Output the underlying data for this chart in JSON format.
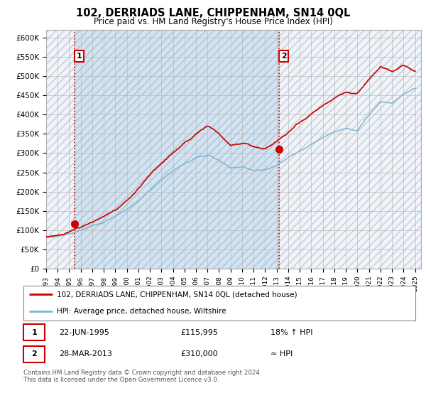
{
  "title": "102, DERRIADS LANE, CHIPPENHAM, SN14 0QL",
  "subtitle": "Price paid vs. HM Land Registry's House Price Index (HPI)",
  "ylabel_ticks": [
    "£0",
    "£50K",
    "£100K",
    "£150K",
    "£200K",
    "£250K",
    "£300K",
    "£350K",
    "£400K",
    "£450K",
    "£500K",
    "£550K",
    "£600K"
  ],
  "ytick_vals": [
    0,
    50000,
    100000,
    150000,
    200000,
    250000,
    300000,
    350000,
    400000,
    450000,
    500000,
    550000,
    600000
  ],
  "ylim": [
    0,
    620000
  ],
  "xlim_start": 1993.0,
  "xlim_end": 2025.5,
  "purchase1_year": 1995.47,
  "purchase1_price": 115995,
  "purchase2_year": 2013.23,
  "purchase2_price": 310000,
  "legend_line1": "102, DERRIADS LANE, CHIPPENHAM, SN14 0QL (detached house)",
  "legend_line2": "HPI: Average price, detached house, Wiltshire",
  "table_row1": [
    "1",
    "22-JUN-1995",
    "£115,995",
    "18% ↑ HPI"
  ],
  "table_row2": [
    "2",
    "28-MAR-2013",
    "£310,000",
    "≈ HPI"
  ],
  "footer": "Contains HM Land Registry data © Crown copyright and database right 2024.\nThis data is licensed under the Open Government Licence v3.0.",
  "line_color_red": "#cc0000",
  "line_color_blue": "#7fb3d3",
  "vline_color": "#cc0000",
  "bg_hatch_color": "#c8d8e8",
  "grid_color": "#bbbbbb"
}
